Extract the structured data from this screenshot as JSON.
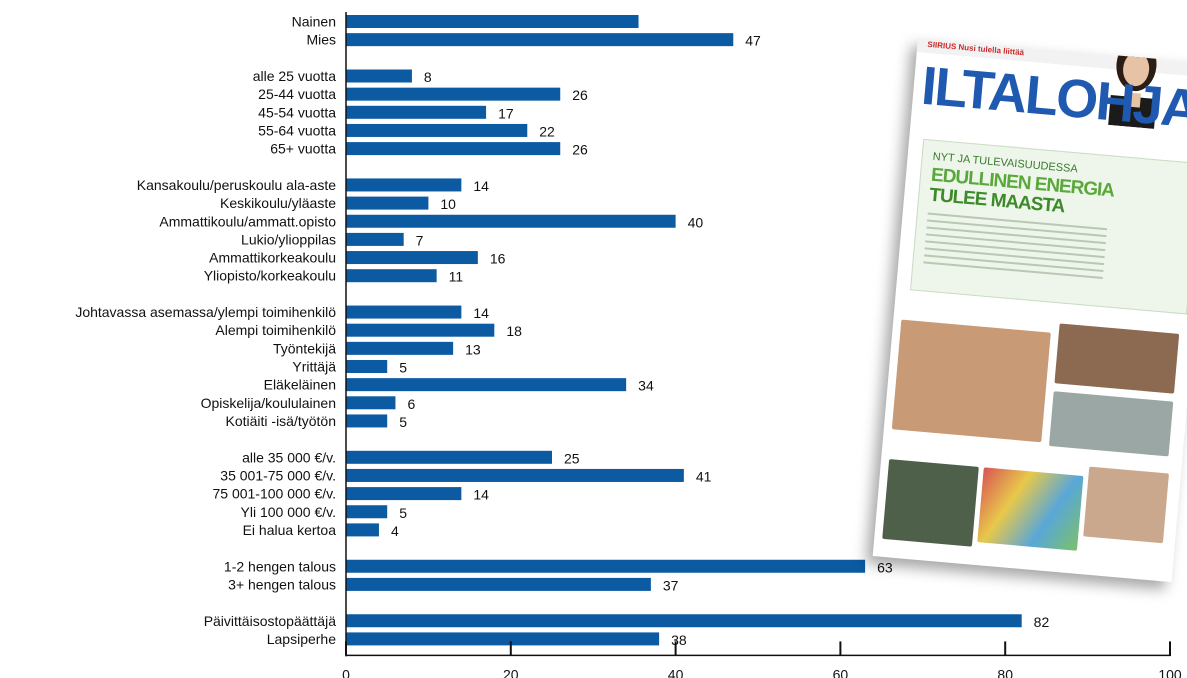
{
  "chart_data": {
    "type": "bar",
    "orientation": "horizontal",
    "bar_color": "#0b5aa2",
    "xlim": [
      0,
      100
    ],
    "xticks": [
      "0",
      "20",
      "40",
      "60",
      "80",
      "100"
    ],
    "grid": false,
    "legend": "none",
    "groups": [
      {
        "items": [
          {
            "label": "Nainen",
            "value": 35.5,
            "value_label": ""
          },
          {
            "label": "Mies",
            "value": 47,
            "value_label": "47"
          }
        ]
      },
      {
        "items": [
          {
            "label": "alle 25 vuotta",
            "value": 8,
            "value_label": "8"
          },
          {
            "label": "25-44 vuotta",
            "value": 26,
            "value_label": "26"
          },
          {
            "label": "45-54 vuotta",
            "value": 17,
            "value_label": "17"
          },
          {
            "label": "55-64 vuotta",
            "value": 22,
            "value_label": "22"
          },
          {
            "label": "65+ vuotta",
            "value": 26,
            "value_label": "26"
          }
        ]
      },
      {
        "items": [
          {
            "label": "Kansakoulu/peruskoulu ala-aste",
            "value": 14,
            "value_label": "14"
          },
          {
            "label": "Keskikoulu/yläaste",
            "value": 10,
            "value_label": "10"
          },
          {
            "label": "Ammattikoulu/ammatt.opisto",
            "value": 40,
            "value_label": "40"
          },
          {
            "label": "Lukio/ylioppilas",
            "value": 7,
            "value_label": "7"
          },
          {
            "label": "Ammattikorkeakoulu",
            "value": 16,
            "value_label": "16"
          },
          {
            "label": "Yliopisto/korkeakoulu",
            "value": 11,
            "value_label": "11"
          }
        ]
      },
      {
        "items": [
          {
            "label": "Johtavassa asemassa/ylempi toimihenkilö",
            "value": 14,
            "value_label": "14"
          },
          {
            "label": "Alempi toimihenkilö",
            "value": 18,
            "value_label": "18"
          },
          {
            "label": "Työntekijä",
            "value": 13,
            "value_label": "13"
          },
          {
            "label": "Yrittäjä",
            "value": 5,
            "value_label": "5"
          },
          {
            "label": "Eläkeläinen",
            "value": 34,
            "value_label": "34"
          },
          {
            "label": "Opiskelija/koululainen",
            "value": 6,
            "value_label": "6"
          },
          {
            "label": "Kotiäiti -isä/työtön",
            "value": 5,
            "value_label": "5"
          }
        ]
      },
      {
        "items": [
          {
            "label": "alle 35 000 €/v.",
            "value": 25,
            "value_label": "25"
          },
          {
            "label": "35 001-75 000 €/v.",
            "value": 41,
            "value_label": "41"
          },
          {
            "label": "75 001-100 000 €/v.",
            "value": 14,
            "value_label": "14"
          },
          {
            "label": "Yli 100 000 €/v.",
            "value": 5,
            "value_label": "5"
          },
          {
            "label": "Ei halua kertoa",
            "value": 4,
            "value_label": "4"
          }
        ]
      },
      {
        "items": [
          {
            "label": "1-2 hengen talous",
            "value": 63,
            "value_label": "63"
          },
          {
            "label": "3+ hengen talous",
            "value": 37,
            "value_label": "37"
          }
        ]
      },
      {
        "items": [
          {
            "label": "Päivittäisostopäättäjä",
            "value": 82,
            "value_label": "82"
          },
          {
            "label": "Lapsiperhe",
            "value": 38,
            "value_label": "38"
          }
        ]
      }
    ]
  },
  "cover": {
    "masthead": "ILTALOHJA",
    "topbar": "SIIRIUS Nusi tulella liittää",
    "headline_small": "NYT JA TULEVAISUUDESSA",
    "headline_1": "EDULLINEN ENERGIA",
    "headline_2": "TULEE MAASTA",
    "colors": {
      "masthead": "#1f5ab0",
      "headline": "#5aa83b"
    }
  }
}
